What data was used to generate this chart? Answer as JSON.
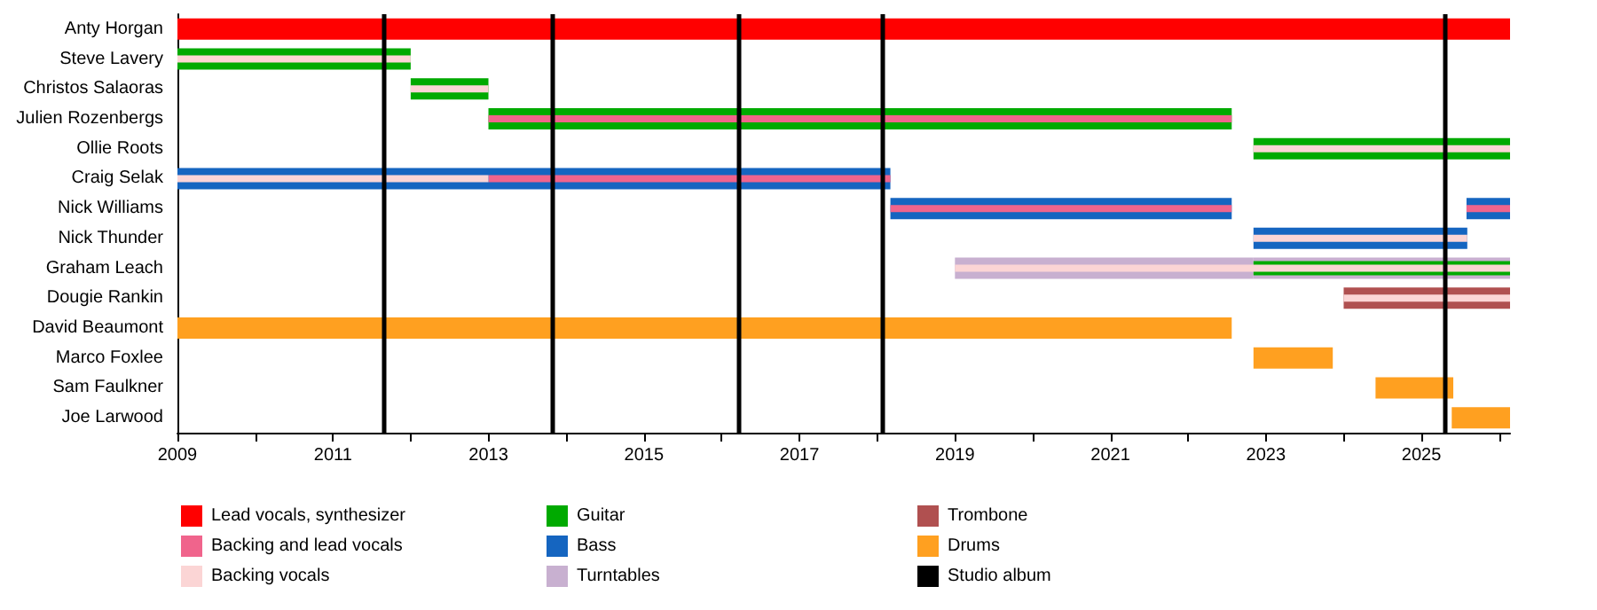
{
  "chart_data": {
    "type": "bar",
    "orientation": "horizontal",
    "categories": [
      "Anty Horgan",
      "Steve Lavery",
      "Christos Salaoras",
      "Julien Rozenbergs",
      "Ollie Roots",
      "Craig Selak",
      "Nick Williams",
      "Nick Thunder",
      "Graham Leach",
      "Dougie Rankin",
      "David Beaumont",
      "Marco Foxlee",
      "Sam Faulkner",
      "Joe Larwood"
    ],
    "series": [
      {
        "name": "Lead vocals, synthesizer",
        "color": "#ff0000",
        "base": [
          2009,
          null,
          null,
          null,
          null,
          null,
          null,
          null,
          null,
          null,
          null,
          null,
          null,
          null
        ],
        "values": [
          17.14,
          null,
          null,
          null,
          null,
          null,
          null,
          null,
          null,
          null,
          null,
          null,
          null,
          null
        ]
      },
      {
        "name": "Backing and lead vocals",
        "color": "#f0648c",
        "base": [
          null,
          null,
          null,
          2013,
          null,
          2013,
          2018.17,
          null,
          null,
          null,
          null,
          null,
          null,
          null
        ],
        "values": [
          null,
          null,
          null,
          9.56,
          null,
          5.17,
          4.39,
          null,
          null,
          null,
          null,
          null,
          null,
          null
        ]
      },
      {
        "color": "#f0648c",
        "base": [
          null,
          null,
          null,
          null,
          null,
          null,
          2025.58,
          null,
          null,
          null,
          null,
          null,
          null,
          null
        ],
        "values": [
          null,
          null,
          null,
          null,
          null,
          null,
          0.56,
          null,
          null,
          null,
          null,
          null,
          null,
          null
        ]
      },
      {
        "name": "Backing vocals",
        "color": "#fbd5d5",
        "base": [
          null,
          2009,
          2012,
          null,
          2022.84,
          2009,
          null,
          2022.84,
          2019,
          2024,
          null,
          null,
          null,
          null
        ],
        "values": [
          null,
          3.0,
          1.0,
          null,
          3.3,
          4.0,
          null,
          2.75,
          7.14,
          2.14,
          null,
          null,
          null,
          null
        ]
      },
      {
        "name": "Guitar",
        "color": "#00aa00",
        "base": [
          null,
          2009,
          2012,
          2013,
          2022.84,
          null,
          null,
          null,
          2022.84,
          null,
          null,
          null,
          null,
          null
        ],
        "values": [
          null,
          3.0,
          1.0,
          9.56,
          3.3,
          null,
          null,
          null,
          3.3,
          null,
          null,
          null,
          null,
          null
        ]
      },
      {
        "name": "Bass",
        "color": "#1565c0",
        "base": [
          null,
          null,
          null,
          null,
          null,
          2009,
          2018.17,
          2022.84,
          null,
          null,
          null,
          null,
          null,
          null
        ],
        "values": [
          null,
          null,
          null,
          null,
          null,
          9.17,
          4.39,
          2.75,
          null,
          null,
          null,
          null,
          null,
          null
        ]
      },
      {
        "color": "#1565c0",
        "base": [
          null,
          null,
          null,
          null,
          null,
          null,
          2025.58,
          null,
          null,
          null,
          null,
          null,
          null,
          null
        ],
        "values": [
          null,
          null,
          null,
          null,
          null,
          null,
          0.56,
          null,
          null,
          null,
          null,
          null,
          null,
          null
        ]
      },
      {
        "name": "Turntables",
        "color": "#c8b0d0",
        "base": [
          null,
          null,
          null,
          null,
          null,
          null,
          null,
          null,
          2019,
          null,
          null,
          null,
          null,
          null
        ],
        "values": [
          null,
          null,
          null,
          null,
          null,
          null,
          null,
          null,
          3.84,
          null,
          null,
          null,
          null,
          null
        ]
      },
      {
        "color": "#c8b0d0",
        "base": [
          null,
          null,
          null,
          null,
          null,
          null,
          null,
          null,
          2022.84,
          null,
          null,
          null,
          null,
          null
        ],
        "values": [
          null,
          null,
          null,
          null,
          null,
          null,
          null,
          null,
          3.3,
          null,
          null,
          null,
          null,
          null
        ]
      },
      {
        "name": "Trombone",
        "color": "#b05050",
        "base": [
          null,
          null,
          null,
          null,
          null,
          null,
          null,
          null,
          null,
          2024,
          null,
          null,
          null,
          null
        ],
        "values": [
          null,
          null,
          null,
          null,
          null,
          null,
          null,
          null,
          null,
          2.14,
          null,
          null,
          null,
          null
        ]
      },
      {
        "name": "Drums",
        "color": "#ffa020",
        "base": [
          null,
          null,
          null,
          null,
          null,
          null,
          null,
          null,
          null,
          null,
          2009,
          2022.84,
          2024.41,
          2025.39
        ],
        "values": [
          null,
          null,
          null,
          null,
          null,
          null,
          null,
          null,
          null,
          null,
          13.56,
          1.02,
          1.0,
          0.75
        ]
      }
    ],
    "ref_lines": [
      {
        "axis": "x",
        "value": 2011.66,
        "label": "Studio album",
        "color": "#000000"
      },
      {
        "axis": "x",
        "value": 2013.83,
        "color": "#000000"
      },
      {
        "axis": "x",
        "value": 2016.22,
        "color": "#000000"
      },
      {
        "axis": "x",
        "value": 2018.06,
        "color": "#000000"
      },
      {
        "axis": "x",
        "value": 2025.29,
        "color": "#000000"
      }
    ],
    "xlim": [
      2009,
      2026.14
    ],
    "xticks": [
      2009,
      {
        "value": 2010,
        "label": null
      },
      2011,
      {
        "value": 2012,
        "label": null
      },
      2013,
      {
        "value": 2014,
        "label": null
      },
      2015,
      {
        "value": 2016,
        "label": null
      },
      2017,
      {
        "value": 2018,
        "label": null
      },
      2019,
      {
        "value": 2020,
        "label": null
      },
      2021,
      {
        "value": 2022,
        "label": null
      },
      2023,
      {
        "value": 2024,
        "label": null
      },
      2025,
      {
        "value": 2026,
        "label": null
      }
    ],
    "grid": false,
    "legend": "bottom"
  }
}
